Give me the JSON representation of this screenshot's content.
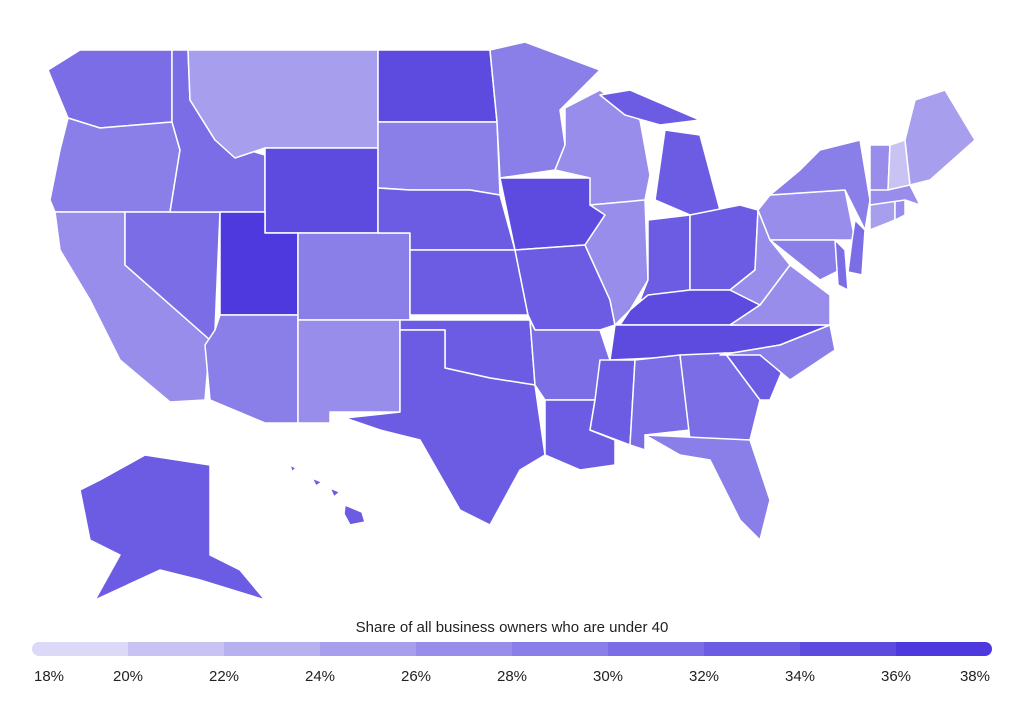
{
  "map": {
    "legend": {
      "title": "Share of all business owners who are under 40",
      "ticks": [
        {
          "value": 18,
          "label": "18%"
        },
        {
          "value": 20,
          "label": "20%"
        },
        {
          "value": 22,
          "label": "22%"
        },
        {
          "value": 24,
          "label": "24%"
        },
        {
          "value": 26,
          "label": "26%"
        },
        {
          "value": 28,
          "label": "28%"
        },
        {
          "value": 30,
          "label": "30%"
        },
        {
          "value": 32,
          "label": "32%"
        },
        {
          "value": 34,
          "label": "34%"
        },
        {
          "value": 36,
          "label": "36%"
        },
        {
          "value": 38,
          "label": "38%"
        }
      ],
      "colors": [
        "#dcd8f7",
        "#c9c3f3",
        "#b8b1f0",
        "#a89eee",
        "#988deb",
        "#8a7ee8",
        "#7b6de5",
        "#6c5ce3",
        "#5d4be0",
        "#4e39de"
      ]
    },
    "regions": {
      "values": [
        31,
        29,
        27,
        30,
        31,
        25,
        35,
        37,
        29,
        29,
        27,
        35,
        29,
        33,
        32,
        33,
        33,
        29,
        34,
        32,
        31,
        32,
        27,
        27,
        33,
        32,
        32,
        34,
        34,
        33,
        31,
        31,
        29,
        32,
        29,
        27,
        27,
        27,
        29,
        29,
        31,
        31,
        24,
        26,
        27,
        26,
        20,
        24,
        33,
        33
      ]
    }
  }
}
